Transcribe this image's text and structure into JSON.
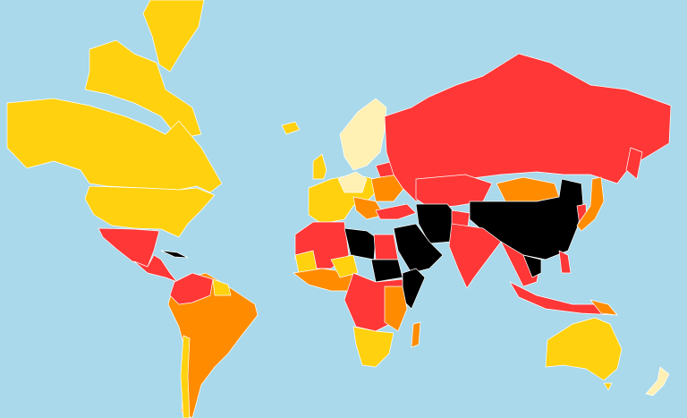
{
  "map": {
    "ocean_color": "#a9d9ea",
    "border_color": "#ffffff",
    "categories": {
      "good": "#fff0b3",
      "satisfactory": "#ffd10f",
      "problematic": "#ff8c00",
      "difficult": "#ff3737",
      "very_serious": "#000000"
    }
  }
}
